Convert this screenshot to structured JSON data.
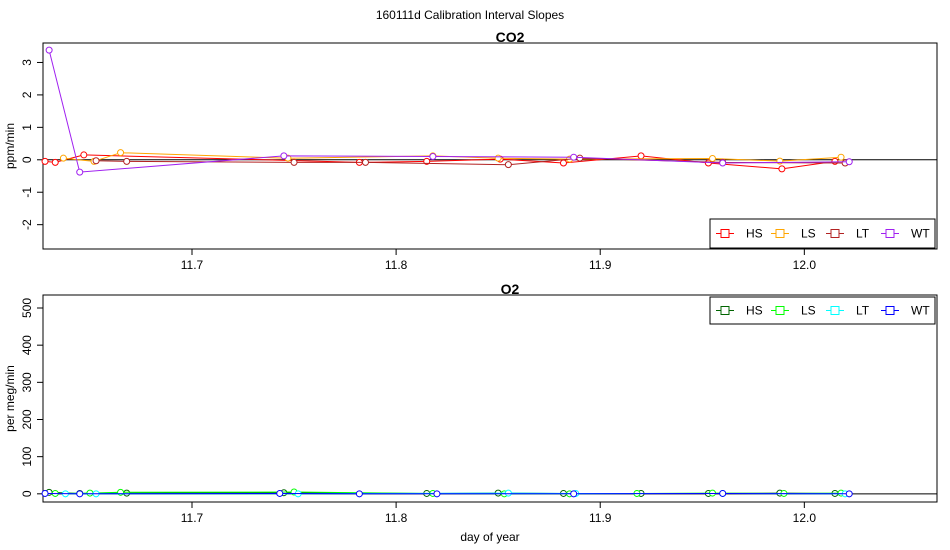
{
  "figure_title": "160111d   Calibration Interval Slopes",
  "chart_data": [
    {
      "type": "line",
      "title": "CO2",
      "xlabel": "",
      "ylabel": "ppm/min",
      "xlim": [
        11.627,
        12.065
      ],
      "ylim": [
        -2.75,
        3.6
      ],
      "x_ticks": [
        11.7,
        11.8,
        11.9,
        12.0
      ],
      "x_tick_labels": [
        "11.7",
        "11.8",
        "11.9",
        "12.0"
      ],
      "y_ticks": [
        -2,
        -1,
        0,
        1,
        2,
        3
      ],
      "y_tick_labels": [
        "-2",
        "-1",
        "0",
        "1",
        "2",
        "3"
      ],
      "reference_line": 0,
      "legend": {
        "position": "bottom-right",
        "labels": [
          "HS",
          "LS",
          "LT",
          "WT"
        ],
        "marker": "square"
      },
      "series": [
        {
          "name": "HS",
          "color": "#ff0000",
          "x": [
            11.628,
            11.633,
            11.647,
            11.782,
            11.815,
            11.851,
            11.882,
            11.92,
            11.953,
            11.989,
            12.015
          ],
          "y": [
            -0.05,
            -0.08,
            0.15,
            -0.08,
            -0.05,
            0.02,
            -0.1,
            0.12,
            -0.1,
            -0.28,
            -0.05
          ]
        },
        {
          "name": "LS",
          "color": "#ffa500",
          "x": [
            11.637,
            11.652,
            11.665,
            11.747,
            11.818,
            11.85,
            11.885,
            11.955,
            11.988,
            12.018
          ],
          "y": [
            0.05,
            -0.05,
            0.22,
            0.05,
            0.12,
            0.05,
            0.02,
            0.04,
            -0.04,
            0.08
          ]
        },
        {
          "name": "LT",
          "color": "#b22222",
          "x": [
            11.653,
            11.668,
            11.75,
            11.785,
            11.855,
            11.89,
            11.96,
            12.02
          ],
          "y": [
            -0.03,
            -0.05,
            -0.08,
            -0.08,
            -0.15,
            0.05,
            -0.08,
            -0.1
          ]
        },
        {
          "name": "WT",
          "color": "#a020f0",
          "x": [
            11.63,
            11.645,
            11.745,
            11.818,
            11.887,
            11.96,
            12.022
          ],
          "y": [
            3.38,
            -0.38,
            0.12,
            0.1,
            0.08,
            -0.1,
            -0.06
          ]
        }
      ]
    },
    {
      "type": "line",
      "title": "O2",
      "xlabel": "day of year",
      "ylabel": "per meg/min",
      "xlim": [
        11.627,
        12.065
      ],
      "ylim": [
        -22,
        535
      ],
      "x_ticks": [
        11.7,
        11.8,
        11.9,
        12.0
      ],
      "x_tick_labels": [
        "11.7",
        "11.8",
        "11.9",
        "12.0"
      ],
      "y_ticks": [
        0,
        100,
        200,
        300,
        400,
        500
      ],
      "y_tick_labels": [
        "0",
        "100",
        "200",
        "300",
        "400",
        "500"
      ],
      "reference_line": 0,
      "legend": {
        "position": "top-right",
        "labels": [
          "HS",
          "LS",
          "LT",
          "WT"
        ],
        "marker": "square"
      },
      "series": [
        {
          "name": "HS",
          "color": "#006400",
          "x": [
            11.63,
            11.645,
            11.668,
            11.745,
            11.815,
            11.85,
            11.882,
            11.92,
            11.953,
            11.988,
            12.015
          ],
          "y": [
            4,
            1,
            2,
            3,
            1,
            2,
            1,
            1,
            1,
            2,
            1
          ]
        },
        {
          "name": "LS",
          "color": "#00ff00",
          "x": [
            11.633,
            11.65,
            11.665,
            11.75,
            11.818,
            11.853,
            11.885,
            11.918,
            11.955,
            11.99,
            12.018
          ],
          "y": [
            1,
            2,
            4,
            5,
            1,
            0,
            0,
            1,
            2,
            1,
            2
          ]
        },
        {
          "name": "LT",
          "color": "#00ffff",
          "x": [
            11.638,
            11.653,
            11.752,
            11.855,
            11.888,
            11.96,
            12.02
          ],
          "y": [
            0,
            0,
            0,
            2,
            1,
            1,
            0
          ]
        },
        {
          "name": "WT",
          "color": "#0000ff",
          "x": [
            11.628,
            11.645,
            11.743,
            11.782,
            11.82,
            11.887,
            11.96,
            12.022
          ],
          "y": [
            1,
            0,
            1,
            0,
            0,
            0,
            1,
            0
          ]
        }
      ]
    }
  ]
}
